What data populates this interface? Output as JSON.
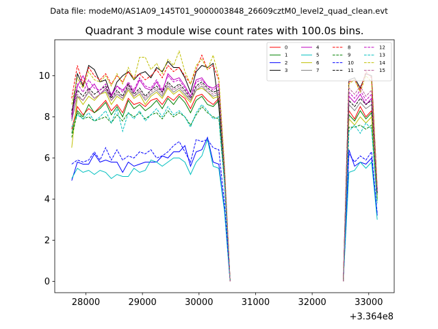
{
  "chart_data": {
    "type": "line",
    "suptitle": "Data file: modeM0/AS1A09_145T01_9000003848_26609cztM0_level2_quad_clean.evt",
    "title": "Quadrant 3 module wise count rates with 100.0s bins.",
    "xlabel": "",
    "ylabel": "",
    "x_offset_label": "+3.364e8",
    "xlim": [
      27450,
      33450
    ],
    "ylim": [
      -0.55,
      11.75
    ],
    "xticks": [
      28000,
      29000,
      30000,
      31000,
      32000,
      33000
    ],
    "xtick_labels": [
      "28000",
      "29000",
      "30000",
      "31000",
      "32000",
      "33000"
    ],
    "yticks": [
      0,
      2,
      4,
      6,
      8,
      10
    ],
    "ytick_labels": [
      "0",
      "2",
      "4",
      "6",
      "8",
      "10"
    ],
    "legend_position": "upper-right",
    "x_segments": [
      [
        27750,
        27850,
        27950,
        28050,
        28150,
        28250,
        28350,
        28450,
        28550,
        28650,
        28750,
        28850,
        28950,
        29050,
        29150,
        29250,
        29350,
        29450,
        29550,
        29650,
        29750,
        29850,
        29950,
        30050,
        30150,
        30250,
        30350,
        30450,
        30550
      ],
      [
        32550,
        32650,
        32750,
        32850,
        32950,
        33050,
        33150
      ]
    ],
    "series": [
      {
        "name": "0",
        "color": "#ff0000",
        "dash": "solid",
        "segments": [
          [
            7.4,
            8.5,
            8.1,
            8.4,
            8.2,
            8.5,
            8.8,
            8.3,
            8.6,
            8.2,
            8.9,
            8.6,
            8.7,
            8.5,
            8.8,
            8.9,
            8.6,
            9.0,
            8.8,
            9.1,
            8.9,
            8.4,
            9.0,
            9.1,
            8.8,
            8.6,
            8.9,
            5.0,
            0.0
          ],
          [
            0.0,
            8.3,
            7.9,
            8.5,
            8.0,
            8.3,
            4.2
          ]
        ]
      },
      {
        "name": "1",
        "color": "#008000",
        "dash": "solid",
        "segments": [
          [
            7.2,
            8.3,
            8.0,
            8.6,
            8.2,
            8.4,
            8.7,
            8.1,
            8.5,
            8.0,
            8.8,
            8.4,
            8.6,
            8.3,
            8.5,
            8.8,
            8.4,
            8.9,
            8.6,
            9.0,
            8.7,
            8.2,
            8.8,
            9.0,
            8.6,
            8.5,
            8.8,
            5.0,
            0.0
          ],
          [
            0.0,
            8.1,
            7.8,
            8.3,
            7.9,
            8.2,
            4.0
          ]
        ]
      },
      {
        "name": "2",
        "color": "#0000ff",
        "dash": "solid",
        "segments": [
          [
            4.9,
            5.8,
            5.7,
            5.7,
            6.2,
            5.8,
            5.9,
            5.8,
            5.8,
            5.3,
            5.8,
            5.6,
            5.7,
            5.8,
            5.8,
            5.8,
            6.1,
            6.0,
            6.3,
            6.3,
            6.6,
            5.6,
            6.3,
            6.4,
            7.0,
            5.8,
            5.7,
            3.5,
            0.0
          ],
          [
            0.0,
            6.4,
            5.6,
            5.8,
            5.7,
            6.0,
            3.2
          ]
        ]
      },
      {
        "name": "3",
        "color": "#000000",
        "dash": "solid",
        "segments": [
          [
            8.1,
            10.1,
            9.5,
            10.5,
            10.3,
            9.7,
            9.8,
            9.0,
            9.7,
            10.0,
            10.2,
            9.8,
            10.1,
            10.2,
            9.9,
            10.4,
            10.2,
            10.7,
            10.4,
            10.4,
            9.9,
            9.2,
            10.2,
            10.5,
            10.4,
            10.6,
            8.5,
            5.0,
            0.0
          ],
          [
            0.0,
            9.8,
            9.9,
            9.4,
            10.1,
            10.0,
            4.5
          ]
        ]
      },
      {
        "name": "4",
        "color": "#bf00bf",
        "dash": "solid",
        "segments": [
          [
            7.9,
            9.5,
            10.0,
            9.3,
            9.6,
            9.1,
            9.4,
            9.0,
            9.5,
            9.3,
            9.6,
            9.2,
            9.8,
            9.4,
            9.3,
            9.7,
            9.2,
            10.1,
            9.8,
            9.9,
            9.5,
            9.0,
            9.8,
            9.9,
            9.5,
            9.4,
            9.6,
            5.5,
            0.0
          ],
          [
            0.0,
            9.0,
            8.7,
            9.1,
            8.6,
            8.9,
            4.3
          ]
        ]
      },
      {
        "name": "5",
        "color": "#00bfbf",
        "dash": "solid",
        "segments": [
          [
            5.0,
            5.5,
            5.3,
            5.4,
            5.2,
            5.4,
            5.3,
            5.0,
            5.2,
            5.1,
            5.1,
            5.5,
            5.3,
            5.4,
            5.9,
            5.8,
            5.6,
            5.8,
            6.0,
            6.0,
            5.8,
            5.2,
            5.8,
            6.1,
            6.9,
            5.6,
            5.5,
            3.4,
            0.0
          ],
          [
            0.0,
            5.3,
            5.4,
            5.8,
            5.5,
            5.8,
            3.0
          ]
        ]
      },
      {
        "name": "6",
        "color": "#bfbf00",
        "dash": "solid",
        "segments": [
          [
            6.5,
            9.0,
            8.6,
            9.0,
            8.8,
            9.1,
            9.2,
            8.6,
            9.0,
            8.8,
            9.3,
            8.9,
            9.1,
            8.6,
            9.0,
            9.2,
            8.9,
            9.4,
            9.1,
            9.3,
            9.0,
            8.7,
            9.3,
            9.4,
            9.2,
            8.9,
            9.0,
            5.2,
            0.0
          ],
          [
            0.0,
            7.9,
            7.6,
            8.0,
            7.7,
            8.0,
            4.1
          ]
        ]
      },
      {
        "name": "7",
        "color": "#808080",
        "dash": "solid",
        "segments": [
          [
            7.8,
            9.0,
            8.8,
            9.2,
            8.9,
            9.1,
            9.3,
            8.8,
            9.1,
            8.9,
            9.4,
            9.0,
            9.2,
            8.8,
            9.1,
            9.3,
            9.0,
            9.5,
            9.2,
            9.4,
            9.1,
            8.8,
            9.3,
            9.5,
            9.2,
            9.0,
            9.1,
            5.3,
            0.0
          ],
          [
            0.0,
            8.6,
            8.3,
            8.7,
            8.4,
            8.6,
            4.2
          ]
        ]
      },
      {
        "name": "8",
        "color": "#ff0000",
        "dash": "dashed",
        "segments": [
          [
            8.9,
            10.5,
            9.6,
            10.4,
            10.0,
            9.8,
            10.1,
            9.6,
            10.0,
            9.7,
            10.2,
            9.9,
            10.1,
            9.8,
            10.0,
            10.3,
            9.9,
            10.5,
            10.2,
            10.4,
            10.0,
            9.6,
            10.3,
            11.0,
            10.3,
            10.5,
            9.8,
            5.6,
            0.0
          ],
          [
            0.0,
            9.7,
            9.8,
            9.3,
            10.2,
            9.9,
            4.5
          ]
        ]
      },
      {
        "name": "9",
        "color": "#008000",
        "dash": "dashed",
        "segments": [
          [
            7.0,
            8.2,
            7.9,
            8.0,
            7.8,
            7.9,
            8.0,
            7.7,
            8.1,
            7.8,
            8.2,
            8.0,
            8.2,
            7.9,
            8.1,
            8.2,
            7.9,
            8.3,
            8.0,
            8.2,
            8.0,
            7.6,
            8.1,
            8.5,
            8.2,
            8.0,
            7.9,
            4.8,
            0.0
          ],
          [
            0.0,
            7.5,
            7.5,
            7.6,
            7.4,
            7.6,
            3.9
          ]
        ]
      },
      {
        "name": "10",
        "color": "#0000ff",
        "dash": "dashed",
        "segments": [
          [
            5.7,
            5.9,
            5.8,
            5.9,
            6.3,
            5.9,
            6.5,
            5.9,
            6.4,
            5.9,
            6.1,
            6.0,
            6.3,
            6.2,
            6.4,
            6.0,
            6.1,
            6.3,
            6.6,
            6.8,
            6.3,
            5.8,
            6.9,
            6.8,
            6.9,
            6.5,
            6.4,
            3.8,
            0.0
          ],
          [
            0.0,
            6.2,
            5.8,
            6.1,
            5.9,
            6.3,
            3.3
          ]
        ]
      },
      {
        "name": "11",
        "color": "#000000",
        "dash": "dashed",
        "segments": [
          [
            8.3,
            9.3,
            9.0,
            9.4,
            9.1,
            9.3,
            9.5,
            8.9,
            9.3,
            9.0,
            9.6,
            9.1,
            9.4,
            9.0,
            9.3,
            9.5,
            9.2,
            9.7,
            9.4,
            9.6,
            9.3,
            8.9,
            9.5,
            9.7,
            9.4,
            9.2,
            9.3,
            5.4,
            0.0
          ],
          [
            0.0,
            8.8,
            8.5,
            8.9,
            8.6,
            8.8,
            4.3
          ]
        ]
      },
      {
        "name": "12",
        "color": "#bf00bf",
        "dash": "dashed",
        "segments": [
          [
            8.0,
            9.6,
            9.2,
            9.8,
            9.4,
            9.3,
            9.6,
            9.1,
            9.5,
            9.2,
            9.7,
            9.3,
            9.9,
            9.5,
            9.4,
            9.8,
            9.3,
            10.0,
            9.7,
            9.8,
            9.4,
            9.0,
            9.7,
            9.8,
            9.5,
            9.3,
            9.5,
            5.5,
            0.0
          ],
          [
            0.0,
            9.2,
            8.9,
            9.3,
            8.8,
            9.1,
            4.4
          ]
        ]
      },
      {
        "name": "13",
        "color": "#00bfbf",
        "dash": "dashed",
        "segments": [
          [
            7.5,
            8.1,
            7.9,
            8.2,
            7.8,
            8.0,
            8.3,
            7.7,
            8.4,
            7.3,
            8.2,
            7.9,
            8.3,
            7.8,
            8.1,
            8.4,
            8.0,
            8.5,
            8.1,
            8.3,
            8.0,
            7.5,
            8.2,
            8.6,
            8.3,
            7.9,
            8.0,
            4.8,
            0.0
          ],
          [
            0.0,
            7.3,
            7.6,
            7.2,
            7.7,
            7.4,
            3.8
          ]
        ]
      },
      {
        "name": "14",
        "color": "#bfbf00",
        "dash": "dashed",
        "segments": [
          [
            8.6,
            9.9,
            9.4,
            10.2,
            9.8,
            9.7,
            10.0,
            9.5,
            10.1,
            9.6,
            10.4,
            9.8,
            10.9,
            10.9,
            10.3,
            10.6,
            10.1,
            10.8,
            10.5,
            11.2,
            10.2,
            9.6,
            10.5,
            10.8,
            10.3,
            11.0,
            9.9,
            5.7,
            0.0
          ],
          [
            0.0,
            9.6,
            9.8,
            9.2,
            10.0,
            9.7,
            4.6
          ]
        ]
      },
      {
        "name": "15",
        "color": "#b35a96",
        "dash": "dashed",
        "segments": [
          [
            8.2,
            9.1,
            8.8,
            9.3,
            8.9,
            9.1,
            9.4,
            8.8,
            9.2,
            8.9,
            9.5,
            9.0,
            9.3,
            8.9,
            9.2,
            9.4,
            9.1,
            9.6,
            9.3,
            9.5,
            9.2,
            8.8,
            9.4,
            9.6,
            9.3,
            9.1,
            9.2,
            5.4,
            0.0
          ],
          [
            0.0,
            9.4,
            9.1,
            9.5,
            9.0,
            9.3,
            4.5
          ]
        ]
      }
    ]
  }
}
